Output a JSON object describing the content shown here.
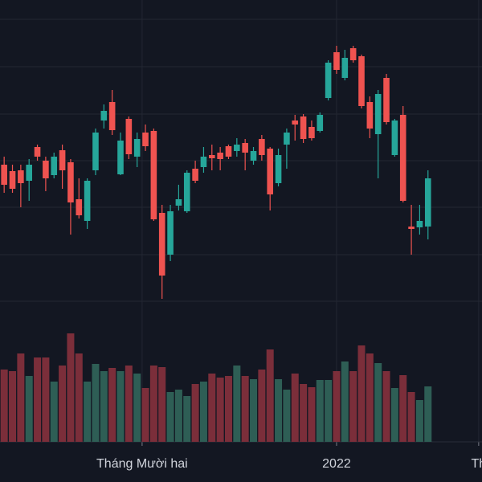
{
  "chart_data": {
    "type": "candlestick",
    "up_color": "#26a69a",
    "down_color": "#ef5350",
    "volume_up_color": "#2e5e55",
    "volume_down_color": "#7b2e3a",
    "ylim": [
      0,
      600
    ],
    "grid_y": [
      576,
      517,
      458,
      400,
      342,
      283,
      225
    ],
    "volume_lim": [
      0,
      550
    ],
    "xlim": [
      -0.5,
      57.5
    ],
    "xticks": [
      {
        "value": 16.6,
        "label": "Tháng Mười hai"
      },
      {
        "value": 40,
        "label": "2022"
      },
      {
        "value": 57.1,
        "label": "Th"
      }
    ],
    "open": [
      395,
      387,
      388,
      375,
      417,
      400,
      382,
      413,
      398,
      352,
      325,
      388,
      450,
      473,
      383,
      452,
      405,
      435,
      437,
      335,
      283,
      344,
      337,
      390,
      392,
      407,
      410,
      418,
      412,
      422,
      400,
      427,
      415,
      372,
      420,
      450,
      455,
      442,
      437,
      478,
      535,
      503,
      540,
      530,
      473,
      433,
      503,
      407,
      457,
      318,
      317,
      318
    ],
    "high": [
      405,
      395,
      395,
      402,
      420,
      405,
      410,
      420,
      402,
      378,
      378,
      440,
      470,
      488,
      435,
      455,
      435,
      445,
      440,
      345,
      345,
      370,
      388,
      400,
      417,
      420,
      417,
      420,
      428,
      427,
      417,
      432,
      417,
      415,
      440,
      457,
      458,
      450,
      460,
      525,
      543,
      538,
      543,
      532,
      480,
      488,
      508,
      452,
      468,
      345,
      345,
      388
    ],
    "low": [
      360,
      360,
      342,
      350,
      400,
      362,
      378,
      365,
      308,
      328,
      315,
      382,
      440,
      432,
      382,
      402,
      392,
      412,
      325,
      228,
      275,
      338,
      335,
      372,
      385,
      388,
      388,
      402,
      405,
      388,
      395,
      400,
      338,
      368,
      390,
      425,
      422,
      425,
      435,
      475,
      508,
      500,
      522,
      465,
      428,
      378,
      445,
      405,
      348,
      283,
      308,
      302
    ],
    "close": [
      370,
      365,
      372,
      395,
      405,
      378,
      405,
      388,
      348,
      332,
      375,
      435,
      462,
      438,
      425,
      408,
      427,
      418,
      327,
      257,
      337,
      352,
      385,
      375,
      405,
      403,
      402,
      405,
      420,
      410,
      412,
      407,
      358,
      407,
      435,
      445,
      427,
      428,
      457,
      522,
      513,
      528,
      525,
      468,
      440,
      483,
      448,
      450,
      350,
      315,
      325,
      378
    ],
    "volume": [
      90,
      88,
      110,
      82,
      105,
      105,
      75,
      95,
      135,
      110,
      75,
      97,
      88,
      92,
      88,
      95,
      85,
      67,
      95,
      93,
      62,
      65,
      57,
      72,
      75,
      85,
      80,
      82,
      95,
      82,
      78,
      90,
      115,
      78,
      65,
      85,
      72,
      68,
      77,
      77,
      88,
      100,
      88,
      120,
      110,
      98,
      88,
      67,
      83,
      62,
      52,
      69
    ]
  }
}
